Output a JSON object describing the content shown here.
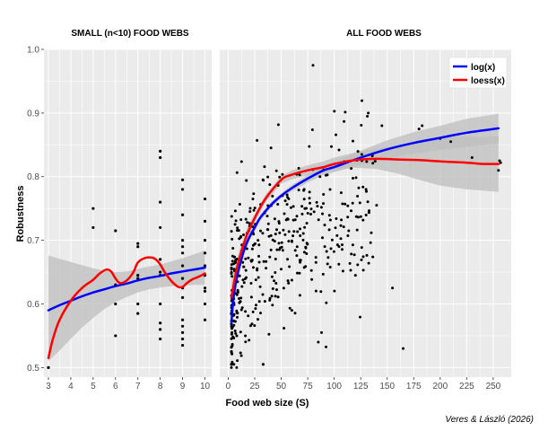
{
  "colors": {
    "panel_bg": "#ebebeb",
    "grid": "#ffffff",
    "points": "#000000",
    "log_fit": "#0000ff",
    "loess_fit": "#ff0000",
    "ribbon": "#bebebe"
  },
  "credit": "Veres & László (2026)",
  "chart_data": [
    {
      "type": "scatter",
      "title": "SMALL (n<10) FOOD WEBS",
      "xlabel": "",
      "ylabel": "Robustness",
      "xlim": [
        2.8,
        10.3
      ],
      "ylim": [
        0.485,
        1.0
      ],
      "xticks": [
        3,
        4,
        5,
        6,
        7,
        8,
        9,
        10
      ],
      "yticks": [
        0.5,
        0.6,
        0.7,
        0.8,
        0.9,
        1.0
      ],
      "ytick_labels": [
        "0.5",
        "0.6",
        "0.7",
        "0.8",
        "0.9",
        "1.0"
      ],
      "grid": true,
      "points": [
        [
          3,
          0.5
        ],
        [
          5,
          0.75
        ],
        [
          5,
          0.72
        ],
        [
          6,
          0.715
        ],
        [
          6,
          0.63
        ],
        [
          6,
          0.6
        ],
        [
          6,
          0.55
        ],
        [
          7,
          0.695
        ],
        [
          7,
          0.69
        ],
        [
          7,
          0.645
        ],
        [
          7,
          0.6
        ],
        [
          7,
          0.585
        ],
        [
          7,
          0.64
        ],
        [
          8,
          0.84
        ],
        [
          8,
          0.83
        ],
        [
          8,
          0.76
        ],
        [
          8,
          0.72
        ],
        [
          8,
          0.67
        ],
        [
          8,
          0.65
        ],
        [
          8,
          0.645
        ],
        [
          8,
          0.6
        ],
        [
          8,
          0.57
        ],
        [
          8,
          0.56
        ],
        [
          8,
          0.545
        ],
        [
          9,
          0.795
        ],
        [
          9,
          0.78
        ],
        [
          9,
          0.74
        ],
        [
          9,
          0.7
        ],
        [
          9,
          0.69
        ],
        [
          9,
          0.68
        ],
        [
          9,
          0.66
        ],
        [
          9,
          0.64
        ],
        [
          9,
          0.625
        ],
        [
          9,
          0.61
        ],
        [
          9,
          0.575
        ],
        [
          9,
          0.565
        ],
        [
          9,
          0.555
        ],
        [
          9,
          0.545
        ],
        [
          9,
          0.535
        ],
        [
          10,
          0.765
        ],
        [
          10,
          0.73
        ],
        [
          10,
          0.7
        ],
        [
          10,
          0.68
        ],
        [
          10,
          0.66
        ],
        [
          10,
          0.645
        ],
        [
          10,
          0.625
        ],
        [
          10,
          0.62
        ],
        [
          10,
          0.6
        ],
        [
          10,
          0.575
        ]
      ],
      "series": [
        {
          "name": "log(x)",
          "x": [
            3,
            3.5,
            4,
            4.5,
            5,
            5.5,
            6,
            6.5,
            7,
            7.5,
            8,
            8.5,
            9,
            9.5,
            10
          ],
          "y": [
            0.59,
            0.598,
            0.605,
            0.612,
            0.618,
            0.623,
            0.628,
            0.632,
            0.637,
            0.641,
            0.644,
            0.648,
            0.651,
            0.654,
            0.657
          ],
          "ci_lower": [
            0.51,
            0.527,
            0.545,
            0.563,
            0.578,
            0.592,
            0.603,
            0.611,
            0.618,
            0.623,
            0.626,
            0.628,
            0.629,
            0.63,
            0.63
          ],
          "ci_upper": [
            0.676,
            0.671,
            0.666,
            0.661,
            0.656,
            0.652,
            0.65,
            0.651,
            0.655,
            0.659,
            0.662,
            0.667,
            0.672,
            0.678,
            0.684
          ]
        },
        {
          "name": "loess(x)",
          "x": [
            3,
            3.2,
            3.5,
            4,
            4.5,
            5,
            5.3,
            5.6,
            5.8,
            6,
            6.2,
            6.5,
            6.8,
            7,
            7.3,
            7.6,
            7.8,
            8,
            8.2,
            8.5,
            8.8,
            9,
            9.2,
            9.4,
            9.6,
            9.8,
            10
          ],
          "y": [
            0.515,
            0.545,
            0.575,
            0.605,
            0.625,
            0.638,
            0.648,
            0.654,
            0.651,
            0.64,
            0.633,
            0.637,
            0.65,
            0.665,
            0.672,
            0.673,
            0.67,
            0.662,
            0.65,
            0.636,
            0.627,
            0.627,
            0.633,
            0.638,
            0.641,
            0.644,
            0.648
          ]
        }
      ]
    },
    {
      "type": "scatter",
      "title": "ALL FOOD WEBS",
      "xlabel": "Food web size (S)",
      "ylabel": "",
      "xlim": [
        -8,
        267
      ],
      "ylim": [
        0.485,
        1.0
      ],
      "xticks": [
        0,
        25,
        50,
        75,
        100,
        125,
        150,
        175,
        200,
        225,
        250
      ],
      "yticks": [
        0.5,
        0.6,
        0.7,
        0.8,
        0.9,
        1.0
      ],
      "grid": true,
      "legend": "top-right",
      "points_note": "dense cloud of black points, mostly S < 140",
      "series": [
        {
          "name": "log(x)",
          "x": [
            3,
            5,
            8,
            10,
            15,
            20,
            25,
            30,
            40,
            50,
            60,
            75,
            90,
            100,
            125,
            150,
            175,
            200,
            225,
            255
          ],
          "y": [
            0.57,
            0.61,
            0.64,
            0.655,
            0.685,
            0.705,
            0.72,
            0.735,
            0.755,
            0.77,
            0.782,
            0.797,
            0.81,
            0.815,
            0.83,
            0.843,
            0.853,
            0.861,
            0.869,
            0.876
          ],
          "ci_lower": [
            0.555,
            0.598,
            0.63,
            0.646,
            0.678,
            0.699,
            0.715,
            0.73,
            0.751,
            0.766,
            0.777,
            0.791,
            0.803,
            0.807,
            0.819,
            0.829,
            0.836,
            0.842,
            0.847,
            0.853
          ],
          "ci_upper": [
            0.585,
            0.622,
            0.65,
            0.664,
            0.692,
            0.711,
            0.725,
            0.74,
            0.759,
            0.774,
            0.787,
            0.803,
            0.817,
            0.823,
            0.841,
            0.857,
            0.87,
            0.88,
            0.891,
            0.899
          ]
        },
        {
          "name": "loess(x)",
          "x": [
            3,
            8,
            12,
            18,
            25,
            35,
            50,
            60,
            75,
            90,
            100,
            120,
            140,
            160,
            180,
            200,
            225,
            240,
            255
          ],
          "y": [
            0.61,
            0.655,
            0.68,
            0.71,
            0.735,
            0.765,
            0.795,
            0.803,
            0.81,
            0.815,
            0.82,
            0.826,
            0.828,
            0.827,
            0.826,
            0.824,
            0.822,
            0.82,
            0.82
          ],
          "ci_lower": [
            0.585,
            0.64,
            0.668,
            0.7,
            0.728,
            0.759,
            0.789,
            0.796,
            0.802,
            0.806,
            0.81,
            0.814,
            0.812,
            0.805,
            0.795,
            0.786,
            0.78,
            0.778,
            0.776
          ],
          "ci_upper": [
            0.635,
            0.67,
            0.692,
            0.72,
            0.742,
            0.771,
            0.801,
            0.81,
            0.818,
            0.824,
            0.83,
            0.838,
            0.844,
            0.849,
            0.857,
            0.862,
            0.864,
            0.862,
            0.864
          ]
        }
      ]
    }
  ]
}
